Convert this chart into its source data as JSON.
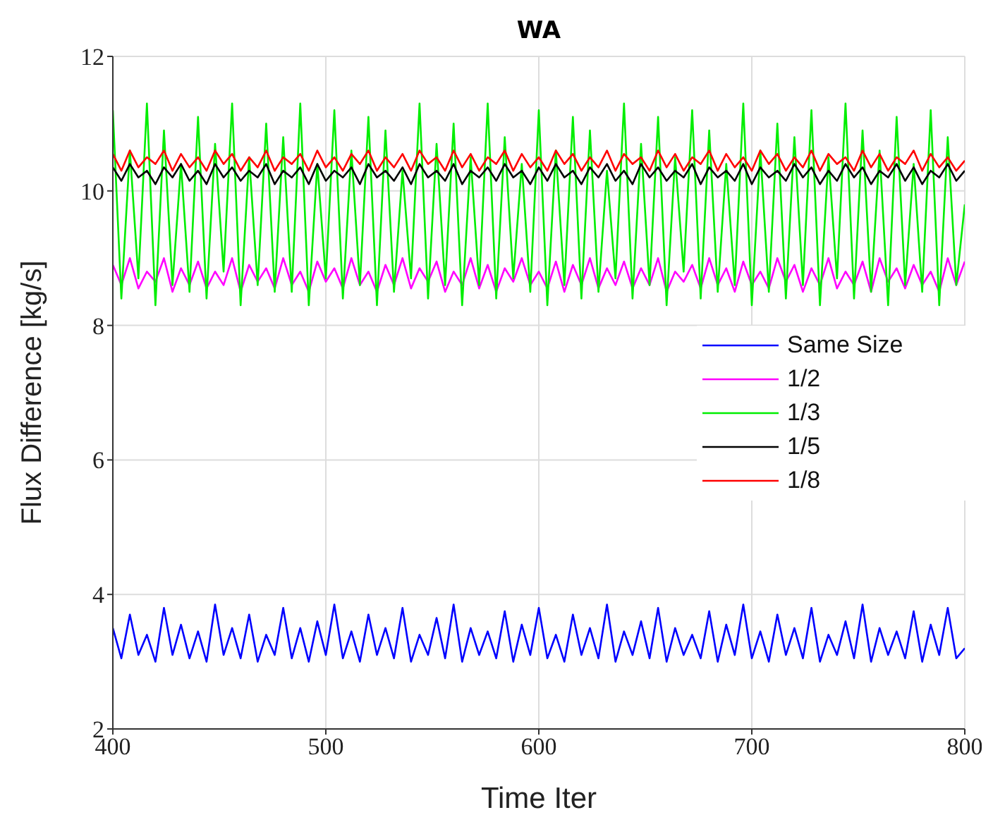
{
  "chart_data": {
    "type": "line",
    "title": "WA",
    "xlabel": "Time Iter",
    "ylabel": "Flux Difference [kg/s]",
    "xlim": [
      400,
      800
    ],
    "xticks": [
      400,
      500,
      600,
      700,
      800
    ],
    "ylim": [
      2,
      12
    ],
    "yticks": [
      2,
      4,
      6,
      8,
      10,
      12
    ],
    "grid": true,
    "legend": "right",
    "marker": "none",
    "line_style": "solid",
    "x": [
      400,
      404,
      408,
      412,
      416,
      420,
      424,
      428,
      432,
      436,
      440,
      444,
      448,
      452,
      456,
      460,
      464,
      468,
      472,
      476,
      480,
      484,
      488,
      492,
      496,
      500,
      504,
      508,
      512,
      516,
      520,
      524,
      528,
      532,
      536,
      540,
      544,
      548,
      552,
      556,
      560,
      564,
      568,
      572,
      576,
      580,
      584,
      588,
      592,
      596,
      600,
      604,
      608,
      612,
      616,
      620,
      624,
      628,
      632,
      636,
      640,
      644,
      648,
      652,
      656,
      660,
      664,
      668,
      672,
      676,
      680,
      684,
      688,
      692,
      696,
      700,
      704,
      708,
      712,
      716,
      720,
      724,
      728,
      732,
      736,
      740,
      744,
      748,
      752,
      756,
      760,
      764,
      768,
      772,
      776,
      780,
      784,
      788,
      792,
      796,
      800
    ],
    "series": [
      {
        "name": "Same Size",
        "color": "#0000ff",
        "values": [
          3.5,
          3.05,
          3.7,
          3.1,
          3.4,
          3.0,
          3.8,
          3.1,
          3.55,
          3.05,
          3.45,
          3.0,
          3.85,
          3.1,
          3.5,
          3.05,
          3.7,
          3.0,
          3.4,
          3.1,
          3.8,
          3.05,
          3.5,
          3.0,
          3.6,
          3.1,
          3.85,
          3.05,
          3.45,
          3.0,
          3.7,
          3.1,
          3.5,
          3.05,
          3.8,
          3.0,
          3.4,
          3.1,
          3.65,
          3.05,
          3.85,
          3.0,
          3.5,
          3.1,
          3.45,
          3.05,
          3.75,
          3.0,
          3.55,
          3.1,
          3.8,
          3.05,
          3.4,
          3.0,
          3.7,
          3.1,
          3.5,
          3.05,
          3.85,
          3.0,
          3.45,
          3.1,
          3.6,
          3.05,
          3.8,
          3.0,
          3.5,
          3.1,
          3.4,
          3.05,
          3.75,
          3.0,
          3.55,
          3.1,
          3.85,
          3.05,
          3.45,
          3.0,
          3.7,
          3.1,
          3.5,
          3.05,
          3.8,
          3.0,
          3.4,
          3.1,
          3.6,
          3.05,
          3.85,
          3.0,
          3.5,
          3.1,
          3.45,
          3.05,
          3.75,
          3.0,
          3.55,
          3.1,
          3.8,
          3.05,
          3.2
        ]
      },
      {
        "name": "1/2",
        "color": "#ff00ff",
        "values": [
          8.9,
          8.6,
          9.0,
          8.55,
          8.8,
          8.65,
          9.0,
          8.5,
          8.85,
          8.6,
          8.95,
          8.55,
          8.8,
          8.6,
          9.0,
          8.5,
          8.9,
          8.65,
          8.85,
          8.55,
          9.0,
          8.6,
          8.8,
          8.5,
          8.95,
          8.65,
          8.85,
          8.55,
          9.0,
          8.6,
          8.8,
          8.5,
          8.9,
          8.6,
          9.0,
          8.55,
          8.85,
          8.65,
          8.95,
          8.5,
          8.8,
          8.6,
          9.0,
          8.55,
          8.9,
          8.5,
          8.85,
          8.65,
          9.0,
          8.6,
          8.8,
          8.55,
          8.95,
          8.5,
          8.9,
          8.6,
          9.0,
          8.55,
          8.85,
          8.6,
          8.95,
          8.55,
          8.85,
          8.6,
          9.0,
          8.5,
          8.8,
          8.65,
          8.9,
          8.55,
          9.0,
          8.6,
          8.85,
          8.5,
          8.95,
          8.6,
          8.8,
          8.55,
          9.0,
          8.65,
          8.9,
          8.5,
          8.85,
          8.6,
          9.0,
          8.55,
          8.8,
          8.6,
          8.95,
          8.5,
          9.0,
          8.65,
          8.85,
          8.55,
          8.9,
          8.6,
          8.8,
          8.5,
          9.0,
          8.6,
          8.95
        ]
      },
      {
        "name": "1/3",
        "color": "#00ee00",
        "values": [
          11.2,
          8.4,
          10.6,
          8.7,
          11.3,
          8.3,
          10.9,
          8.6,
          10.4,
          8.5,
          11.1,
          8.4,
          10.7,
          8.8,
          11.3,
          8.3,
          10.5,
          8.6,
          11.0,
          8.5,
          10.8,
          8.5,
          11.3,
          8.3,
          10.4,
          8.7,
          11.2,
          8.4,
          10.6,
          8.6,
          11.1,
          8.3,
          10.9,
          8.5,
          10.3,
          8.7,
          11.3,
          8.4,
          10.7,
          8.6,
          11.0,
          8.3,
          10.5,
          8.6,
          11.3,
          8.4,
          10.8,
          8.7,
          10.4,
          8.5,
          11.2,
          8.3,
          10.6,
          8.6,
          11.1,
          8.4,
          10.9,
          8.5,
          10.3,
          8.7,
          11.3,
          8.4,
          10.7,
          8.6,
          11.1,
          8.3,
          10.5,
          8.8,
          11.2,
          8.4,
          10.9,
          8.5,
          10.4,
          8.6,
          11.3,
          8.3,
          10.6,
          8.5,
          11.0,
          8.4,
          10.8,
          8.6,
          11.2,
          8.3,
          10.5,
          8.7,
          11.3,
          8.4,
          10.9,
          8.5,
          10.6,
          8.3,
          11.1,
          8.6,
          10.4,
          8.5,
          11.2,
          8.3,
          10.8,
          8.6,
          9.8
        ]
      },
      {
        "name": "1/5",
        "color": "#000000",
        "values": [
          10.35,
          10.15,
          10.4,
          10.2,
          10.3,
          10.1,
          10.35,
          10.2,
          10.4,
          10.15,
          10.3,
          10.1,
          10.4,
          10.2,
          10.35,
          10.15,
          10.3,
          10.2,
          10.4,
          10.1,
          10.3,
          10.2,
          10.35,
          10.1,
          10.4,
          10.15,
          10.3,
          10.2,
          10.35,
          10.1,
          10.4,
          10.2,
          10.3,
          10.15,
          10.35,
          10.1,
          10.4,
          10.2,
          10.3,
          10.15,
          10.4,
          10.1,
          10.3,
          10.2,
          10.35,
          10.15,
          10.4,
          10.2,
          10.3,
          10.1,
          10.35,
          10.15,
          10.4,
          10.2,
          10.3,
          10.1,
          10.35,
          10.2,
          10.4,
          10.15,
          10.3,
          10.1,
          10.4,
          10.2,
          10.35,
          10.15,
          10.3,
          10.2,
          10.4,
          10.1,
          10.35,
          10.2,
          10.3,
          10.15,
          10.4,
          10.1,
          10.35,
          10.2,
          10.3,
          10.15,
          10.4,
          10.2,
          10.35,
          10.1,
          10.3,
          10.15,
          10.4,
          10.2,
          10.35,
          10.1,
          10.3,
          10.2,
          10.4,
          10.15,
          10.35,
          10.1,
          10.3,
          10.2,
          10.4,
          10.15,
          10.3
        ]
      },
      {
        "name": "1/8",
        "color": "#ff0000",
        "values": [
          10.55,
          10.3,
          10.6,
          10.35,
          10.5,
          10.4,
          10.6,
          10.3,
          10.55,
          10.35,
          10.5,
          10.3,
          10.6,
          10.4,
          10.55,
          10.3,
          10.5,
          10.35,
          10.6,
          10.3,
          10.5,
          10.4,
          10.55,
          10.3,
          10.6,
          10.35,
          10.5,
          10.3,
          10.55,
          10.4,
          10.6,
          10.3,
          10.5,
          10.35,
          10.55,
          10.3,
          10.6,
          10.4,
          10.5,
          10.3,
          10.6,
          10.35,
          10.55,
          10.3,
          10.5,
          10.4,
          10.6,
          10.3,
          10.55,
          10.35,
          10.5,
          10.3,
          10.6,
          10.4,
          10.55,
          10.3,
          10.5,
          10.35,
          10.6,
          10.3,
          10.55,
          10.4,
          10.5,
          10.3,
          10.6,
          10.35,
          10.55,
          10.3,
          10.5,
          10.4,
          10.6,
          10.3,
          10.55,
          10.35,
          10.5,
          10.3,
          10.6,
          10.4,
          10.55,
          10.3,
          10.5,
          10.35,
          10.6,
          10.3,
          10.55,
          10.4,
          10.5,
          10.3,
          10.6,
          10.35,
          10.55,
          10.3,
          10.5,
          10.4,
          10.6,
          10.3,
          10.55,
          10.35,
          10.5,
          10.3,
          10.45
        ]
      }
    ]
  }
}
